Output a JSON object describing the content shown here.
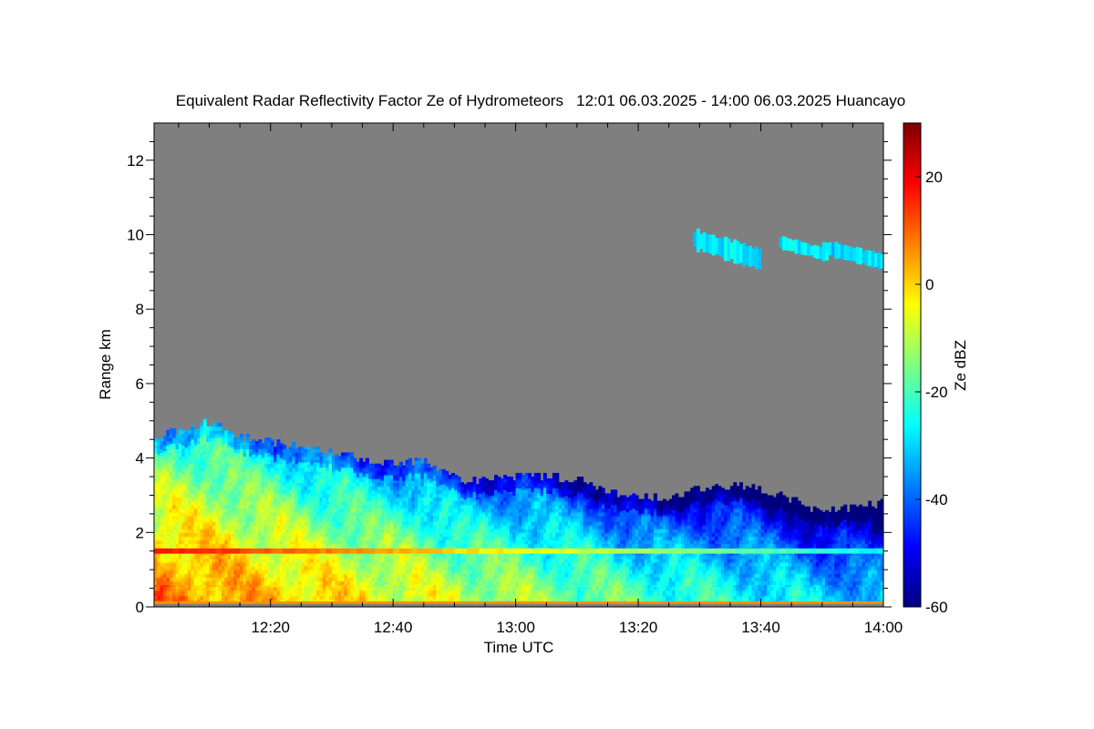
{
  "chart_data": {
    "type": "heatmap",
    "title": "Equivalent Radar Reflectivity Factor Ze of Hydrometeors   12:01 06.03.2025 - 14:00 06.03.2025 Huancayo",
    "xlabel": "Time UTC",
    "ylabel": "Range km",
    "x_ticks": [
      "12:20",
      "12:40",
      "13:00",
      "13:20",
      "13:40",
      "14:00"
    ],
    "x_tick_minutes": [
      20,
      40,
      60,
      80,
      100,
      120
    ],
    "xlim_minutes": [
      1,
      120
    ],
    "y_ticks": [
      0,
      2,
      4,
      6,
      8,
      10,
      12
    ],
    "ylim": [
      0,
      13
    ],
    "colorbar": {
      "label": "Ze dBZ",
      "ticks": [
        20,
        0,
        -20,
        -40,
        -60
      ],
      "range": [
        -60,
        30
      ],
      "colors": [
        "#00007f",
        "#0000ff",
        "#0080ff",
        "#00ffff",
        "#80ff80",
        "#ffff00",
        "#ff8000",
        "#ff0000",
        "#7f0000"
      ]
    },
    "no_signal_color": "#7f7f7f",
    "cloud_top_km": [
      {
        "min": 1,
        "top": 4.6
      },
      {
        "min": 5,
        "top": 4.75
      },
      {
        "min": 10,
        "top": 4.95
      },
      {
        "min": 15,
        "top": 4.55
      },
      {
        "min": 20,
        "top": 4.4
      },
      {
        "min": 25,
        "top": 4.3
      },
      {
        "min": 30,
        "top": 4.1
      },
      {
        "min": 35,
        "top": 3.95
      },
      {
        "min": 40,
        "top": 3.85
      },
      {
        "min": 45,
        "top": 3.9
      },
      {
        "min": 48,
        "top": 3.65
      },
      {
        "min": 52,
        "top": 3.35
      },
      {
        "min": 56,
        "top": 3.45
      },
      {
        "min": 60,
        "top": 3.5
      },
      {
        "min": 65,
        "top": 3.5
      },
      {
        "min": 70,
        "top": 3.4
      },
      {
        "min": 75,
        "top": 3.1
      },
      {
        "min": 80,
        "top": 2.95
      },
      {
        "min": 85,
        "top": 2.85
      },
      {
        "min": 88,
        "top": 3.1
      },
      {
        "min": 93,
        "top": 3.25
      },
      {
        "min": 98,
        "top": 3.2
      },
      {
        "min": 103,
        "top": 3.0
      },
      {
        "min": 108,
        "top": 2.6
      },
      {
        "min": 112,
        "top": 2.55
      },
      {
        "min": 116,
        "top": 2.7
      },
      {
        "min": 120,
        "top": 2.75
      }
    ],
    "bright_band_km": 1.5,
    "cirrus_patches": [
      {
        "start_min": 89,
        "end_min": 100,
        "base_km": 9.1,
        "top_km": 10.2,
        "ze": -28
      },
      {
        "start_min": 103,
        "end_min": 111,
        "base_km": 9.3,
        "top_km": 10.0,
        "ze": -28
      },
      {
        "start_min": 110,
        "end_min": 120,
        "base_km": 9.1,
        "top_km": 9.9,
        "ze": -30
      }
    ]
  }
}
